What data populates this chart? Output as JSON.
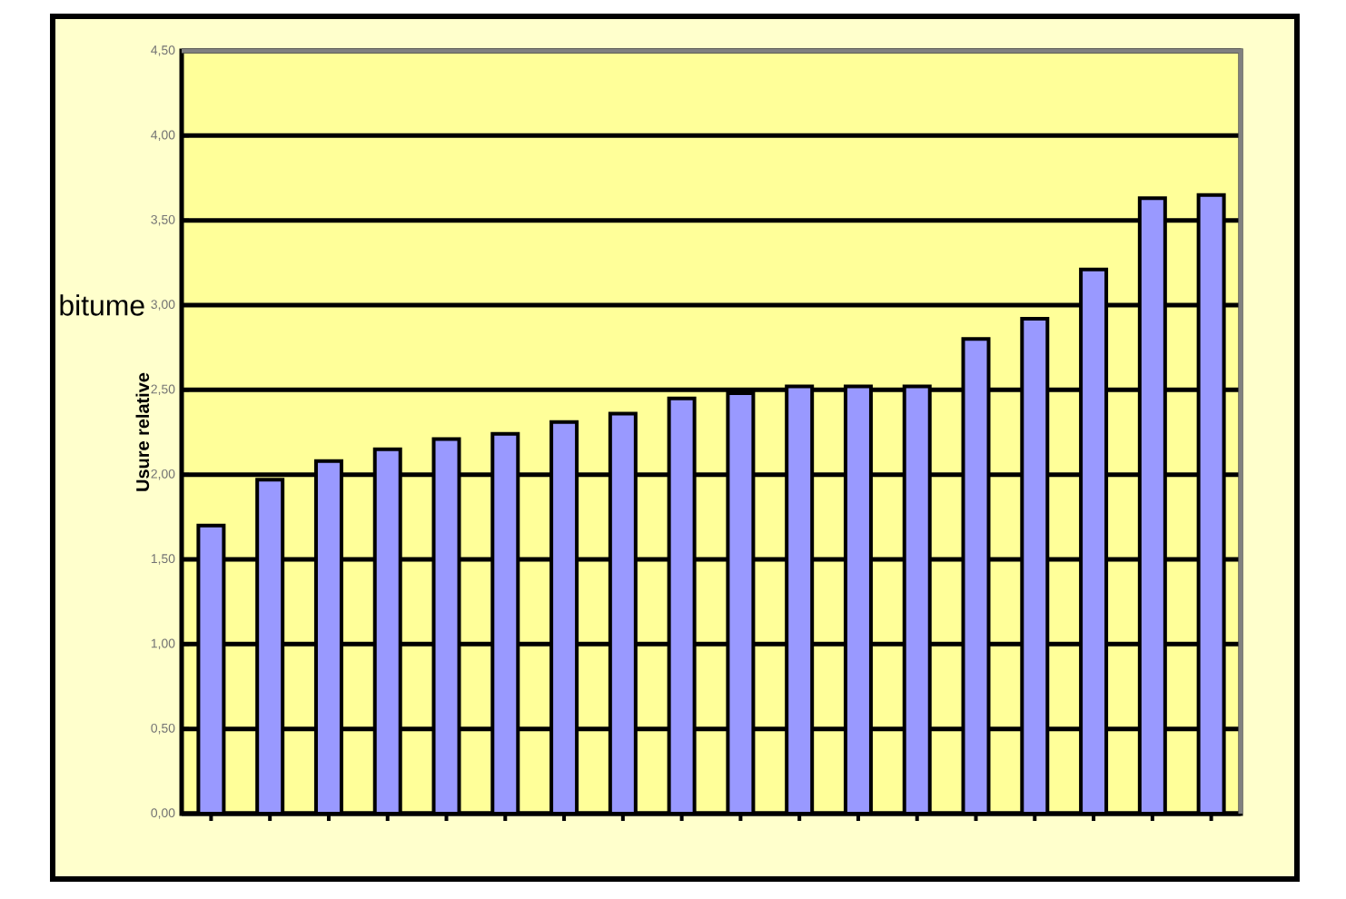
{
  "chart_data": {
    "type": "bar",
    "ylabel": "Usure relative",
    "annotations": [
      "bitume"
    ],
    "categories": [
      null,
      null,
      null,
      null,
      null,
      null,
      null,
      null,
      null,
      null,
      null,
      null,
      null,
      null,
      null,
      null,
      null,
      null
    ],
    "values": [
      1.7,
      1.97,
      2.08,
      2.15,
      2.21,
      2.24,
      2.31,
      2.36,
      2.45,
      2.48,
      2.52,
      2.52,
      2.52,
      2.8,
      2.92,
      3.21,
      3.63,
      3.65
    ],
    "color": "#9999ff",
    "ylim": [
      0,
      4.5
    ],
    "yticks": [
      {
        "value": 0,
        "label": "0,00"
      },
      {
        "value": 0.5,
        "label": "0,50"
      },
      {
        "value": 1,
        "label": "1,00"
      },
      {
        "value": 1.5,
        "label": "1,50"
      },
      {
        "value": 2,
        "label": "2,00"
      },
      {
        "value": 2.5,
        "label": "2,50"
      },
      {
        "value": 3,
        "label": "3,00"
      },
      {
        "value": 3.5,
        "label": "3,50"
      },
      {
        "value": 4,
        "label": "4,00"
      },
      {
        "value": 4.5,
        "label": "4,50"
      }
    ],
    "grid": "y"
  }
}
